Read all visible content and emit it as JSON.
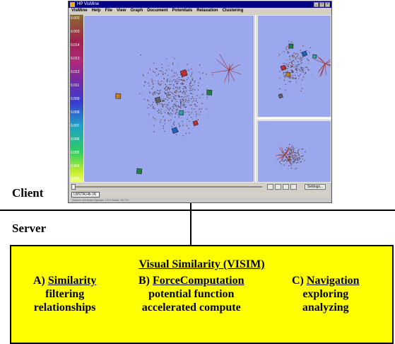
{
  "app": {
    "window_title": "HP VisMine",
    "menu": [
      "VisMine",
      "Help",
      "File",
      "View",
      "Graph",
      "Document",
      "Potentials",
      "Relaxation",
      "Clustering"
    ],
    "scale_ticks": [
      "0.003",
      "0.003",
      "0.014",
      "0.013",
      "0.013",
      "0.011",
      "0.009",
      "0.008",
      "0.007",
      "0.006",
      "0.005",
      "0.004",
      "0.002"
    ],
    "settings_label": "Settings...",
    "tab_label": "LWSTA14b (4)",
    "status_text": "Search: 63 items   Spread: 1.0:1   Scale: 33.7%"
  },
  "diagram": {
    "client_label": "Client",
    "server_label": "Server",
    "box_title": "Visual Similarity (VISIM)",
    "columns": [
      {
        "prefix": "A)",
        "name": "Similarity",
        "lines": [
          "filtering",
          "relationships"
        ]
      },
      {
        "prefix": "B)",
        "name": "ForceComputation",
        "lines": [
          "potential function",
          "accelerated compute"
        ]
      },
      {
        "prefix": "C)",
        "name": "Navigation",
        "lines": [
          "exploring",
          "analyzing"
        ]
      }
    ]
  },
  "colors": {
    "box_fill": "#ffff00",
    "view_background": "#9ca8ee",
    "titlebar": "#000080"
  }
}
